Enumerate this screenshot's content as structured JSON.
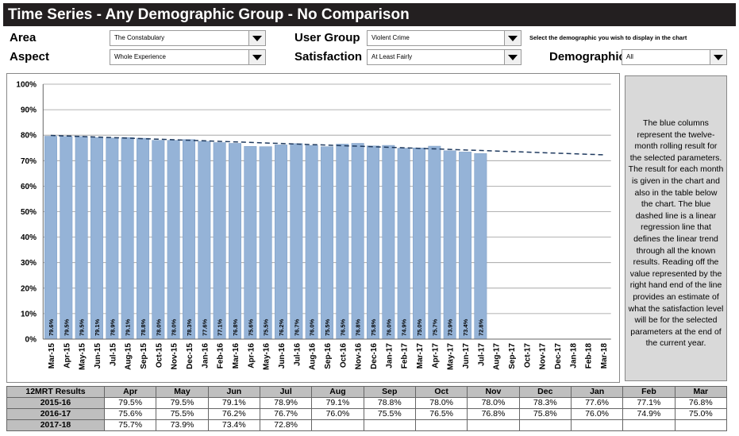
{
  "header": {
    "title": "Time Series - Any Demographic Group - No Comparison"
  },
  "controls": {
    "area_label": "Area",
    "area": "The Constabulary",
    "user_group_label": "User Group",
    "user_group": "Violent Crime",
    "hint": "Select the demographic you wish to display in the chart",
    "aspect_label": "Aspect",
    "aspect": "Whole Experience",
    "satisfaction_label": "Satisfaction",
    "satisfaction": "At Least Fairly",
    "demographic_label": "Demographic",
    "demographic": "All"
  },
  "chart_data": {
    "type": "bar",
    "color": "#95b3d7",
    "categories": [
      "Mar-15",
      "Apr-15",
      "May-15",
      "Jun-15",
      "Jul-15",
      "Aug-15",
      "Sep-15",
      "Oct-15",
      "Nov-15",
      "Dec-15",
      "Jan-16",
      "Feb-16",
      "Mar-16",
      "Apr-16",
      "May-16",
      "Jun-16",
      "Jul-16",
      "Aug-16",
      "Sep-16",
      "Oct-16",
      "Nov-16",
      "Dec-16",
      "Jan-17",
      "Feb-17",
      "Mar-17",
      "Apr-17",
      "May-17",
      "Jun-17",
      "Jul-17",
      "Aug-17",
      "Sep-17",
      "Oct-17",
      "Nov-17",
      "Dec-17",
      "Jan-18",
      "Feb-18",
      "Mar-18"
    ],
    "values": [
      79.6,
      79.5,
      79.5,
      79.1,
      78.9,
      79.1,
      78.8,
      78.0,
      78.0,
      78.3,
      77.6,
      77.1,
      76.8,
      75.6,
      75.5,
      76.2,
      76.7,
      76.0,
      75.5,
      76.5,
      76.8,
      75.8,
      76.0,
      74.9,
      75.0,
      75.7,
      73.9,
      73.4,
      72.8,
      null,
      null,
      null,
      null,
      null,
      null,
      null,
      null
    ],
    "value_labels": [
      "79.6%",
      "79.5%",
      "79.5%",
      "79.1%",
      "78.9%",
      "79.1%",
      "78.8%",
      "78.0%",
      "78.0%",
      "78.3%",
      "77.6%",
      "77.1%",
      "76.8%",
      "75.6%",
      "75.5%",
      "76.2%",
      "76.7%",
      "76.0%",
      "75.5%",
      "76.5%",
      "76.8%",
      "75.8%",
      "76.0%",
      "74.9%",
      "75.0%",
      "75.7%",
      "73.9%",
      "73.4%",
      "72.8%",
      null,
      null,
      null,
      null,
      null,
      null,
      null,
      null
    ],
    "trend": [
      79.9,
      72.3
    ],
    "ylim": [
      0,
      100
    ],
    "yticks": [
      {
        "value": 0,
        "label": "0%"
      },
      {
        "value": 10,
        "label": "10%"
      },
      {
        "value": 20,
        "label": "20%"
      },
      {
        "value": 30,
        "label": "30%"
      },
      {
        "value": 40,
        "label": "40%"
      },
      {
        "value": 50,
        "label": "50%"
      },
      {
        "value": 60,
        "label": "60%"
      },
      {
        "value": 70,
        "label": "70%"
      },
      {
        "value": 80,
        "label": "80%"
      },
      {
        "value": 90,
        "label": "90%"
      },
      {
        "value": 100,
        "label": "100%"
      }
    ],
    "grid": true
  },
  "note": "The blue columns represent the twelve-month rolling result for the selected parameters. The result for each month is given in the chart and also in the table below the chart. The blue dashed line is a linear regression line that defines the linear trend through all the known results. Reading off the value represented by the right hand end of the line provides an estimate of what the satisfaction level will be for the selected parameters at the end of the current year.",
  "table": {
    "header": [
      "12MRT Results",
      "Apr",
      "May",
      "Jun",
      "Jul",
      "Aug",
      "Sep",
      "Oct",
      "Nov",
      "Dec",
      "Jan",
      "Feb",
      "Mar"
    ],
    "rows": [
      [
        "2015-16",
        "79.5%",
        "79.5%",
        "79.1%",
        "78.9%",
        "79.1%",
        "78.8%",
        "78.0%",
        "78.0%",
        "78.3%",
        "77.6%",
        "77.1%",
        "76.8%"
      ],
      [
        "2016-17",
        "75.6%",
        "75.5%",
        "76.2%",
        "76.7%",
        "76.0%",
        "75.5%",
        "76.5%",
        "76.8%",
        "75.8%",
        "76.0%",
        "74.9%",
        "75.0%"
      ],
      [
        "2017-18",
        "75.7%",
        "73.9%",
        "73.4%",
        "72.8%"
      ]
    ]
  }
}
